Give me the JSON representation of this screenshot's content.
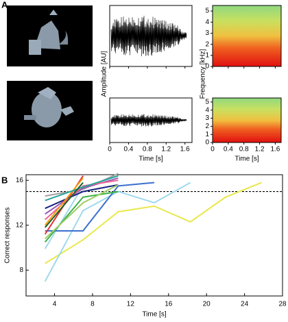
{
  "panel_labels": [
    "A",
    "B"
  ],
  "chart_data": [
    {
      "type": "waveform",
      "ylabel": "Amplitude [AU]",
      "xlabel": "Time [s]",
      "xlim": [
        0,
        1.75
      ],
      "xticks": [
        0,
        0.4,
        0.8,
        1.2,
        1.6
      ]
    },
    {
      "type": "spectrogram",
      "ylabel": "Frequency [kHz]",
      "xlabel": "Time [s]",
      "xlim": [
        0,
        1.75
      ],
      "xticks": [
        0,
        0.4,
        0.8,
        1.2,
        1.6
      ],
      "ylim": [
        0,
        5.5
      ],
      "yticks": [
        0,
        1,
        2,
        3,
        4,
        5
      ]
    },
    {
      "type": "line",
      "ylabel": "Correct responses",
      "xlabel": "Time [s]",
      "xlim": [
        1,
        28
      ],
      "xticks": [
        4,
        8,
        12,
        16,
        20,
        24,
        28
      ],
      "ylim": [
        5.7,
        16.5
      ],
      "yticks": [
        8,
        12,
        16
      ],
      "reference_line": 15,
      "x": [
        3,
        7,
        10.7,
        14.5,
        18.3,
        22,
        25.8
      ],
      "series": [
        {
          "color": "#e8e84a",
          "values": [
            8.6,
            10.7,
            13.2,
            13.7,
            12.3,
            14.5,
            15.8
          ]
        },
        {
          "color": "#9fd8ec",
          "values": [
            7.0,
            13.3,
            15.0,
            14.0,
            15.8,
            null,
            null
          ]
        },
        {
          "color": "#9fd8ec",
          "values": [
            9.9,
            15.5,
            null,
            null,
            null,
            null,
            null
          ]
        },
        {
          "color": "#3b6fd0",
          "values": [
            11.5,
            11.5,
            15.5,
            15.8,
            null,
            null,
            null
          ]
        },
        {
          "color": "#e03030",
          "values": [
            11.2,
            16.4,
            null,
            null,
            null,
            null,
            null
          ]
        },
        {
          "color": "#3cb043",
          "values": [
            10.5,
            14.5,
            15.0,
            null,
            null,
            null,
            null
          ]
        },
        {
          "color": "#a0a0a0",
          "values": [
            14.6,
            15.2,
            16.6,
            null,
            null,
            null,
            null
          ]
        },
        {
          "color": "#9b59b6",
          "values": [
            13.0,
            15.3,
            16.2,
            null,
            null,
            null,
            null
          ]
        },
        {
          "color": "#1a237e",
          "values": [
            13.5,
            15.0,
            15.6,
            null,
            null,
            null,
            null
          ]
        },
        {
          "color": "#f06292",
          "values": [
            12.5,
            15.5,
            16.0,
            null,
            null,
            null,
            null
          ]
        },
        {
          "color": "#f39c12",
          "values": [
            12.0,
            16.2,
            null,
            null,
            null,
            null,
            null
          ]
        },
        {
          "color": "#26a69a",
          "values": [
            14.2,
            15.4,
            16.4,
            null,
            null,
            null,
            null
          ]
        },
        {
          "color": "#1b5e20",
          "values": [
            11.8,
            15.8,
            null,
            null,
            null,
            null,
            null
          ]
        },
        {
          "color": "#9ccc65",
          "values": [
            10.8,
            14.0,
            15.6,
            null,
            null,
            null,
            null
          ]
        }
      ]
    }
  ]
}
